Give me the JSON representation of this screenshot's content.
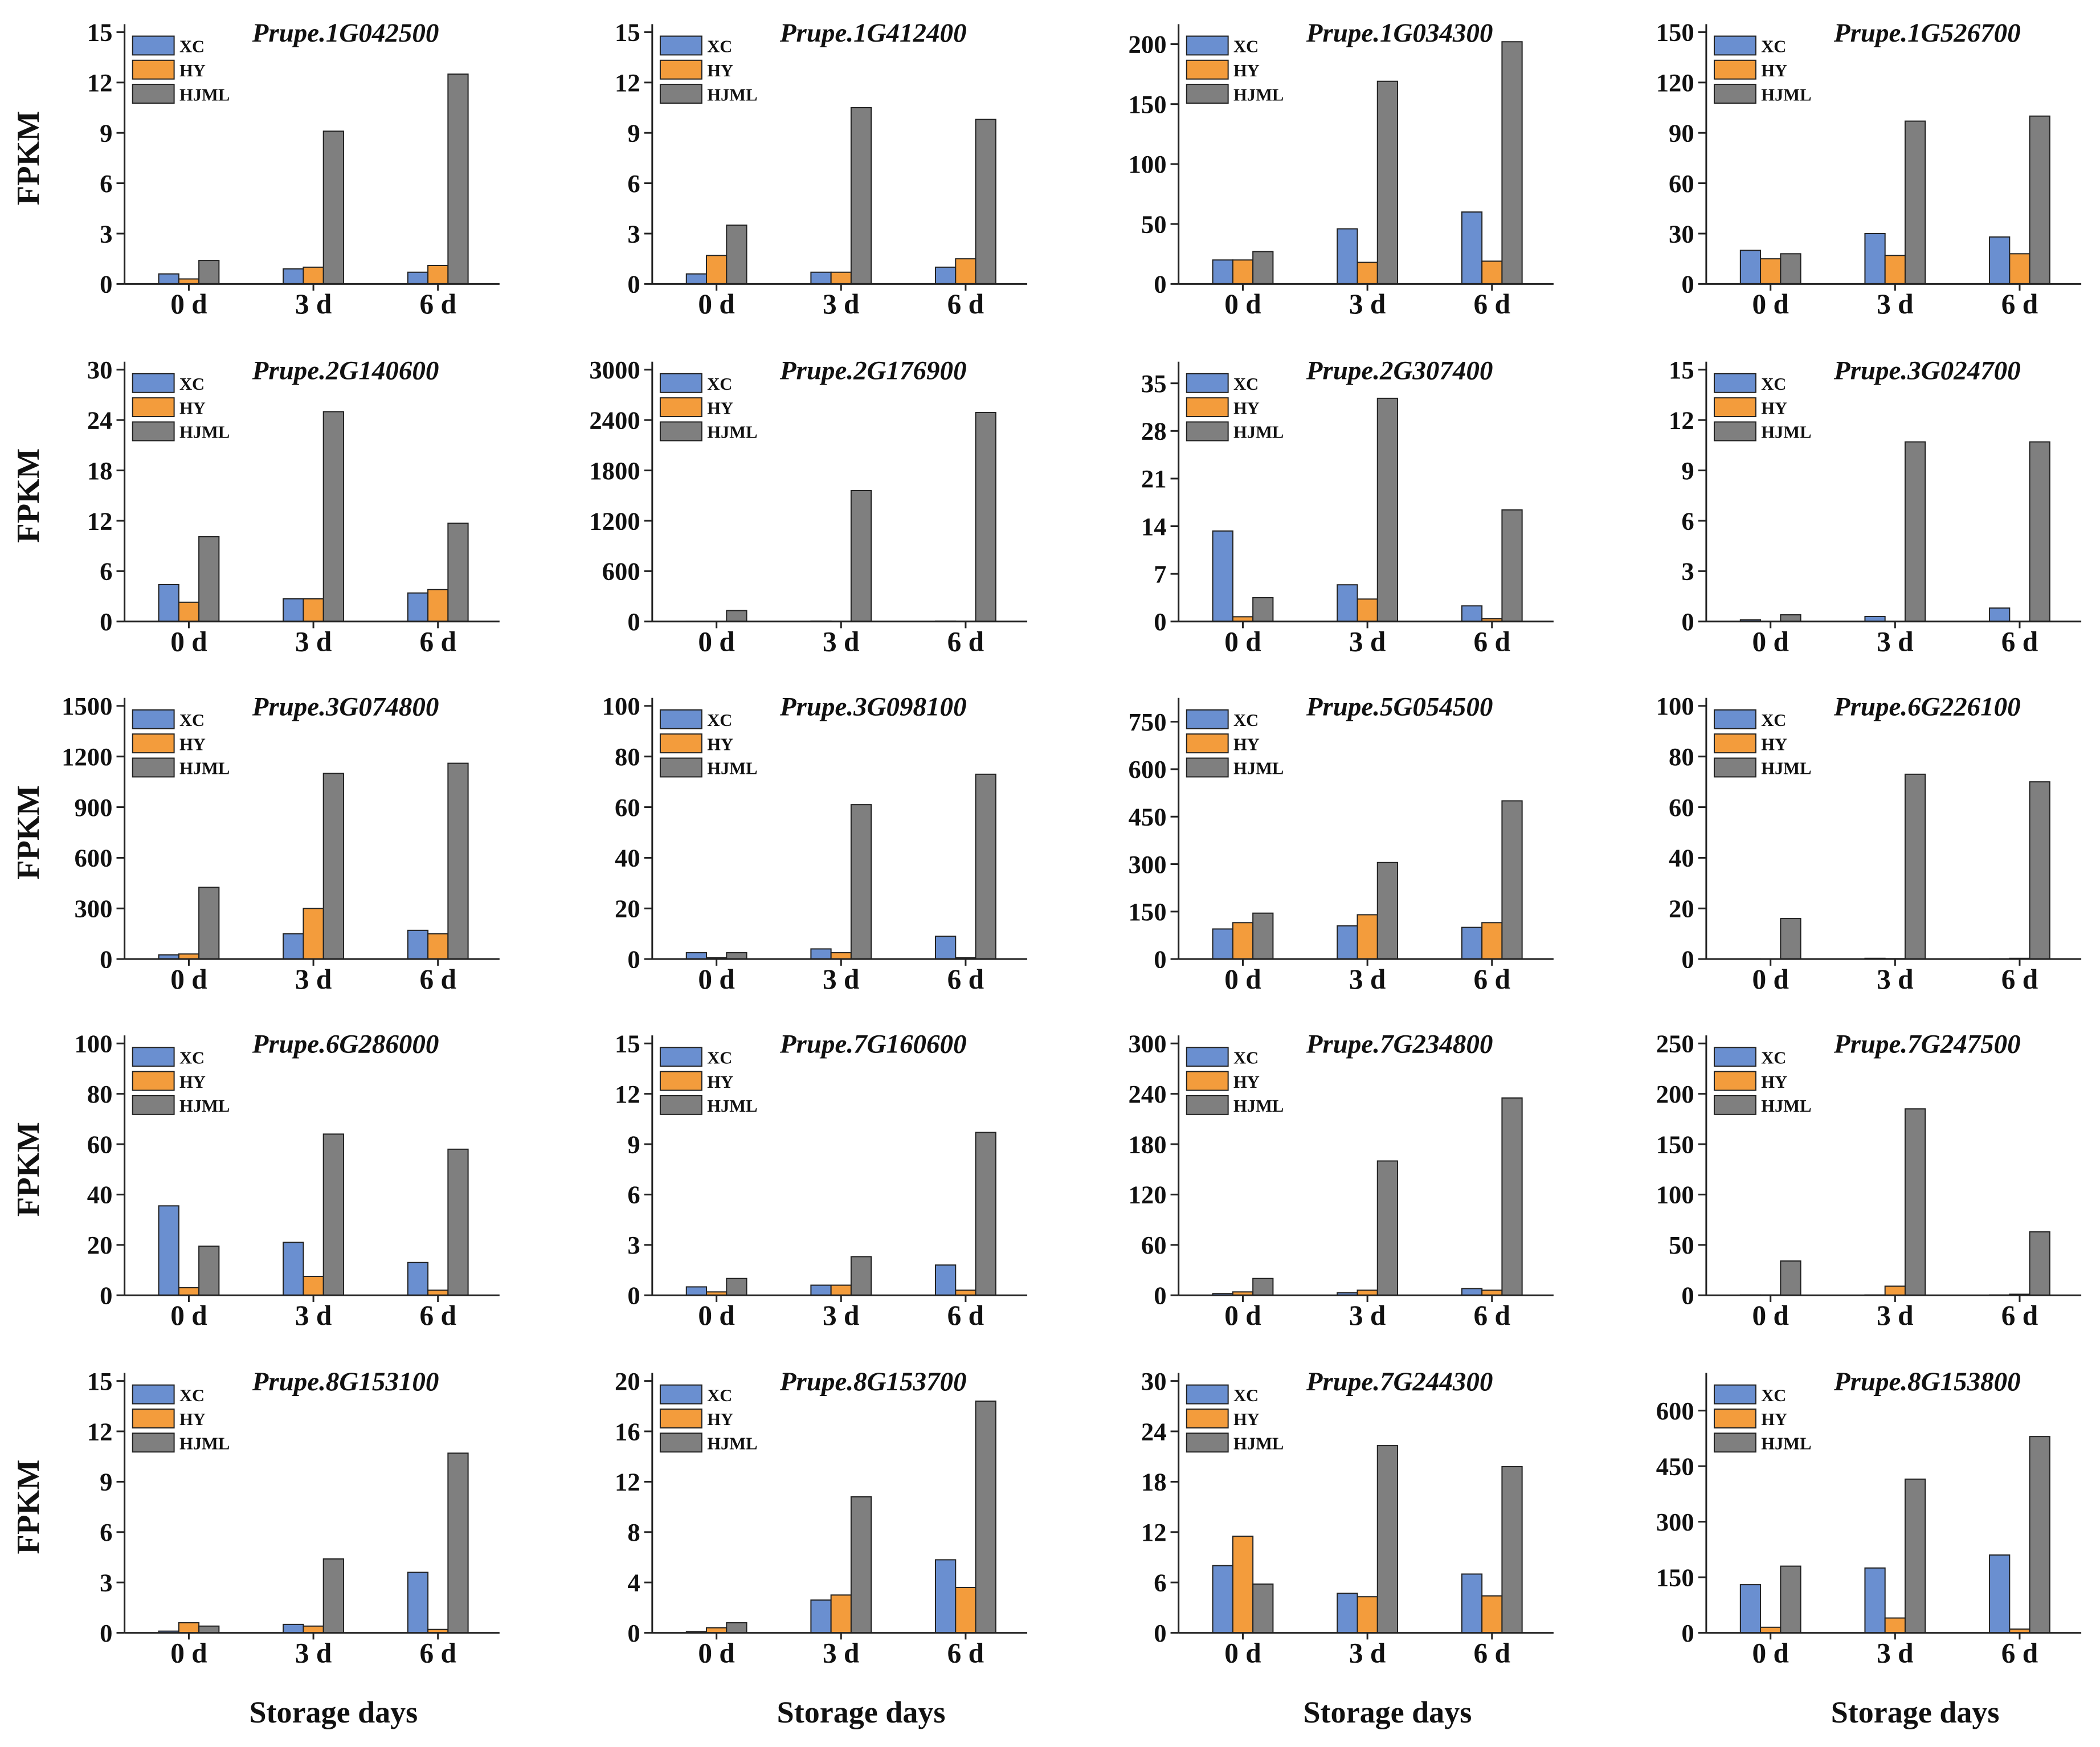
{
  "figure": {
    "y_label": "FPKM",
    "x_label": "Storage days",
    "legend": [
      "XC",
      "HY",
      "HJML"
    ],
    "categories": [
      "0 d",
      "3 d",
      "6 d"
    ],
    "colors": {
      "XC": "#6a8fd0",
      "HY": "#f39c3c",
      "HJML": "#7f7f7f"
    }
  },
  "chart_data": [
    {
      "type": "bar",
      "title": "Prupe.1G042500",
      "ylim": [
        0,
        15
      ],
      "yticks": [
        0,
        3,
        6,
        9,
        12,
        15
      ],
      "series": [
        {
          "name": "XC",
          "values": [
            0.6,
            0.9,
            0.7
          ]
        },
        {
          "name": "HY",
          "values": [
            0.3,
            1.0,
            1.1
          ]
        },
        {
          "name": "HJML",
          "values": [
            1.4,
            9.1,
            12.5
          ]
        }
      ]
    },
    {
      "type": "bar",
      "title": "Prupe.1G412400",
      "ylim": [
        0,
        15
      ],
      "yticks": [
        0,
        3,
        6,
        9,
        12,
        15
      ],
      "series": [
        {
          "name": "XC",
          "values": [
            0.6,
            0.7,
            1.0
          ]
        },
        {
          "name": "HY",
          "values": [
            1.7,
            0.7,
            1.5
          ]
        },
        {
          "name": "HJML",
          "values": [
            3.5,
            10.5,
            9.8
          ]
        }
      ]
    },
    {
      "type": "bar",
      "title": "Prupe.1G034300",
      "ylim": [
        0,
        210
      ],
      "yticks": [
        0,
        50,
        100,
        150,
        200
      ],
      "series": [
        {
          "name": "XC",
          "values": [
            20,
            46,
            60
          ]
        },
        {
          "name": "HY",
          "values": [
            20,
            18,
            19
          ]
        },
        {
          "name": "HJML",
          "values": [
            27,
            169,
            202
          ]
        }
      ]
    },
    {
      "type": "bar",
      "title": "Prupe.1G526700",
      "ylim": [
        0,
        150
      ],
      "yticks": [
        0,
        30,
        60,
        90,
        120,
        150
      ],
      "series": [
        {
          "name": "XC",
          "values": [
            20,
            30,
            28
          ]
        },
        {
          "name": "HY",
          "values": [
            15,
            17,
            18
          ]
        },
        {
          "name": "HJML",
          "values": [
            18,
            97,
            100
          ]
        }
      ]
    },
    {
      "type": "bar",
      "title": "Prupe.2G140600",
      "ylim": [
        0,
        30
      ],
      "yticks": [
        0,
        6,
        12,
        18,
        24,
        30
      ],
      "series": [
        {
          "name": "XC",
          "values": [
            4.4,
            2.7,
            3.4
          ]
        },
        {
          "name": "HY",
          "values": [
            2.3,
            2.7,
            3.8
          ]
        },
        {
          "name": "HJML",
          "values": [
            10.1,
            25.0,
            11.7
          ]
        }
      ]
    },
    {
      "type": "bar",
      "title": "Prupe.2G176900",
      "ylim": [
        0,
        3000
      ],
      "yticks": [
        0,
        600,
        1200,
        1800,
        2400,
        3000
      ],
      "series": [
        {
          "name": "XC",
          "values": [
            2,
            5,
            5
          ]
        },
        {
          "name": "HY",
          "values": [
            2,
            3,
            3
          ]
        },
        {
          "name": "HJML",
          "values": [
            130,
            1560,
            2490
          ]
        }
      ]
    },
    {
      "type": "bar",
      "title": "Prupe.2G307400",
      "ylim": [
        0,
        37
      ],
      "yticks": [
        0,
        7,
        14,
        21,
        28,
        35
      ],
      "series": [
        {
          "name": "XC",
          "values": [
            13.3,
            5.4,
            2.3
          ]
        },
        {
          "name": "HY",
          "values": [
            0.7,
            3.3,
            0.4
          ]
        },
        {
          "name": "HJML",
          "values": [
            3.5,
            32.8,
            16.4
          ]
        }
      ]
    },
    {
      "type": "bar",
      "title": "Prupe.3G024700",
      "ylim": [
        0,
        15
      ],
      "yticks": [
        0,
        3,
        6,
        9,
        12,
        15
      ],
      "series": [
        {
          "name": "XC",
          "values": [
            0.1,
            0.3,
            0.8
          ]
        },
        {
          "name": "HY",
          "values": [
            0.0,
            0.0,
            0.0
          ]
        },
        {
          "name": "HJML",
          "values": [
            0.4,
            10.7,
            10.7
          ]
        }
      ]
    },
    {
      "type": "bar",
      "title": "Prupe.3G074800",
      "ylim": [
        0,
        1500
      ],
      "yticks": [
        0,
        300,
        600,
        900,
        1200,
        1500
      ],
      "series": [
        {
          "name": "XC",
          "values": [
            25,
            150,
            170
          ]
        },
        {
          "name": "HY",
          "values": [
            30,
            300,
            150
          ]
        },
        {
          "name": "HJML",
          "values": [
            425,
            1100,
            1160
          ]
        }
      ]
    },
    {
      "type": "bar",
      "title": "Prupe.3G098100",
      "ylim": [
        0,
        100
      ],
      "yticks": [
        0,
        20,
        40,
        60,
        80,
        100
      ],
      "series": [
        {
          "name": "XC",
          "values": [
            2.5,
            4.0,
            9.0
          ]
        },
        {
          "name": "HY",
          "values": [
            0.5,
            2.5,
            0.5
          ]
        },
        {
          "name": "HJML",
          "values": [
            2.5,
            61,
            73
          ]
        }
      ]
    },
    {
      "type": "bar",
      "title": "Prupe.5G054500",
      "ylim": [
        0,
        800
      ],
      "yticks": [
        0,
        150,
        300,
        450,
        600,
        750
      ],
      "series": [
        {
          "name": "XC",
          "values": [
            95,
            105,
            100
          ]
        },
        {
          "name": "HY",
          "values": [
            115,
            140,
            115
          ]
        },
        {
          "name": "HJML",
          "values": [
            145,
            305,
            500
          ]
        }
      ]
    },
    {
      "type": "bar",
      "title": "Prupe.6G226100",
      "ylim": [
        0,
        100
      ],
      "yticks": [
        0,
        20,
        40,
        60,
        80,
        100
      ],
      "series": [
        {
          "name": "XC",
          "values": [
            0.1,
            0.3,
            0.1
          ]
        },
        {
          "name": "HY",
          "values": [
            0.0,
            0.2,
            0.3
          ]
        },
        {
          "name": "HJML",
          "values": [
            16,
            73,
            70
          ]
        }
      ]
    },
    {
      "type": "bar",
      "title": "Prupe.6G286000",
      "ylim": [
        0,
        100
      ],
      "yticks": [
        0,
        20,
        40,
        60,
        80,
        100
      ],
      "series": [
        {
          "name": "XC",
          "values": [
            35.5,
            21,
            13
          ]
        },
        {
          "name": "HY",
          "values": [
            3,
            7.5,
            2
          ]
        },
        {
          "name": "HJML",
          "values": [
            19.5,
            64,
            58
          ]
        }
      ]
    },
    {
      "type": "bar",
      "title": "Prupe.7G160600",
      "ylim": [
        0,
        15
      ],
      "yticks": [
        0,
        3,
        6,
        9,
        12,
        15
      ],
      "series": [
        {
          "name": "XC",
          "values": [
            0.5,
            0.6,
            1.8
          ]
        },
        {
          "name": "HY",
          "values": [
            0.2,
            0.6,
            0.3
          ]
        },
        {
          "name": "HJML",
          "values": [
            1.0,
            2.3,
            9.7
          ]
        }
      ]
    },
    {
      "type": "bar",
      "title": "Prupe.7G234800",
      "ylim": [
        0,
        300
      ],
      "yticks": [
        0,
        60,
        120,
        180,
        240,
        300
      ],
      "series": [
        {
          "name": "XC",
          "values": [
            2,
            3,
            8
          ]
        },
        {
          "name": "HY",
          "values": [
            4,
            6,
            6
          ]
        },
        {
          "name": "HJML",
          "values": [
            20,
            160,
            235
          ]
        }
      ]
    },
    {
      "type": "bar",
      "title": "Prupe.7G247500",
      "ylim": [
        0,
        250
      ],
      "yticks": [
        0,
        50,
        100,
        150,
        200,
        250
      ],
      "series": [
        {
          "name": "XC",
          "values": [
            0.3,
            0.3,
            0.3
          ]
        },
        {
          "name": "HY",
          "values": [
            0.3,
            9,
            1
          ]
        },
        {
          "name": "HJML",
          "values": [
            34,
            185,
            63
          ]
        }
      ]
    },
    {
      "type": "bar",
      "title": "Prupe.8G153100",
      "ylim": [
        0,
        15
      ],
      "yticks": [
        0,
        3,
        6,
        9,
        12,
        15
      ],
      "series": [
        {
          "name": "XC",
          "values": [
            0.1,
            0.5,
            3.6
          ]
        },
        {
          "name": "HY",
          "values": [
            0.6,
            0.4,
            0.2
          ]
        },
        {
          "name": "HJML",
          "values": [
            0.4,
            4.4,
            10.7
          ]
        }
      ]
    },
    {
      "type": "bar",
      "title": "Prupe.8G153700",
      "ylim": [
        0,
        20
      ],
      "yticks": [
        0,
        4,
        8,
        12,
        16,
        20
      ],
      "series": [
        {
          "name": "XC",
          "values": [
            0.1,
            2.6,
            5.8
          ]
        },
        {
          "name": "HY",
          "values": [
            0.4,
            3.0,
            3.6
          ]
        },
        {
          "name": "HJML",
          "values": [
            0.8,
            10.8,
            18.4
          ]
        }
      ]
    },
    {
      "type": "bar",
      "title": "Prupe.7G244300",
      "ylim": [
        0,
        30
      ],
      "yticks": [
        0,
        6,
        12,
        18,
        24,
        30
      ],
      "series": [
        {
          "name": "XC",
          "values": [
            8.0,
            4.7,
            7.0
          ]
        },
        {
          "name": "HY",
          "values": [
            11.5,
            4.3,
            4.4
          ]
        },
        {
          "name": "HJML",
          "values": [
            5.8,
            22.3,
            19.8
          ]
        }
      ]
    },
    {
      "type": "bar",
      "title": "Prupe.8G153800",
      "ylim": [
        0,
        680
      ],
      "yticks": [
        0,
        150,
        300,
        450,
        600
      ],
      "series": [
        {
          "name": "XC",
          "values": [
            130,
            175,
            210
          ]
        },
        {
          "name": "HY",
          "values": [
            15,
            40,
            10
          ]
        },
        {
          "name": "HJML",
          "values": [
            180,
            415,
            530
          ]
        }
      ]
    }
  ]
}
